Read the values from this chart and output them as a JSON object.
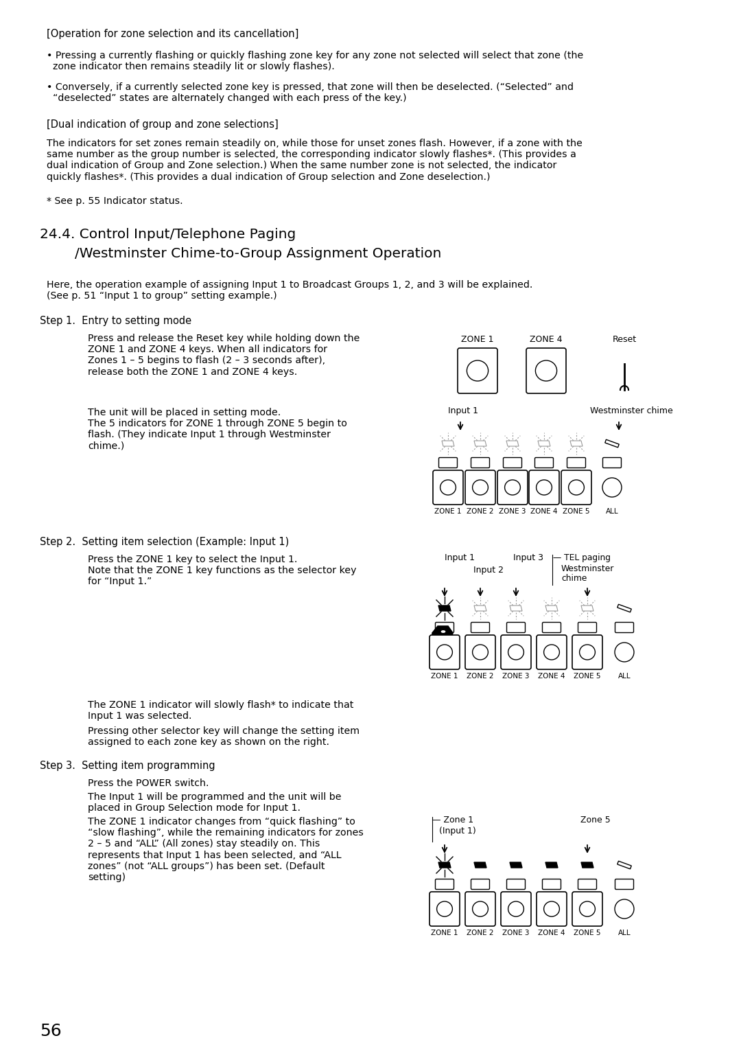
{
  "bg_color": "#ffffff",
  "text_color": "#000000",
  "page_number": "56",
  "content": {
    "section_header1": "[Operation for zone selection and its cancellation]",
    "bullet1": "• Pressing a currently flashing or quickly flashing zone key for any zone not selected will select that zone (the\n  zone indicator then remains steadily lit or slowly flashes).",
    "bullet2": "• Conversely, if a currently selected zone key is pressed, that zone will then be deselected. (“Selected” and\n  “deselected” states are alternately changed with each press of the key.)",
    "section_header2": "[Dual indication of group and zone selections]",
    "para1": "The indicators for set zones remain steadily on, while those for unset zones flash. However, if a zone with the\nsame number as the group number is selected, the corresponding indicator slowly flashes*. (This provides a\ndual indication of Group and Zone selection.) When the same number zone is not selected, the indicator\nquickly flashes*. (This provides a dual indication of Group selection and Zone deselection.)",
    "footnote": "* See p. 55 Indicator status.",
    "section_title_line1": "24.4. Control Input/Telephone Paging",
    "section_title_line2": "        /Westminster Chime-to-Group Assignment Operation",
    "intro_para": "Here, the operation example of assigning Input 1 to Broadcast Groups 1, 2, and 3 will be explained.\n(See p. 51 “Input 1 to group” setting example.)",
    "step1_label": "Step 1.  Entry to setting mode",
    "step1_text": "Press and release the Reset key while holding down the\nZONE 1 and ZONE 4 keys. When all indicators for\nZones 1 – 5 begins to flash (2 – 3 seconds after),\nrelease both the ZONE 1 and ZONE 4 keys.",
    "step1b_text": "The unit will be placed in setting mode.\nThe 5 indicators for ZONE 1 through ZONE 5 begin to\nflash. (They indicate Input 1 through Westminster\nchime.)",
    "zone_labels": [
      "ZONE 1",
      "ZONE 2",
      "ZONE 3",
      "ZONE 4",
      "ZONE 5",
      "ALL"
    ],
    "step2_label": "Step 2.  Setting item selection (Example: Input 1)",
    "step2_text1": "Press the ZONE 1 key to select the Input 1.\nNote that the ZONE 1 key functions as the selector key\nfor “Input 1.”",
    "step2_text2": "The ZONE 1 indicator will slowly flash* to indicate that\nInput 1 was selected.",
    "step2_text3": "Pressing other selector key will change the setting item\nassigned to each zone key as shown on the right.",
    "step3_label": "Step 3.  Setting item programming",
    "step3_text1": "Press the POWER switch.",
    "step3_text2": "The Input 1 will be programmed and the unit will be\nplaced in Group Selection mode for Input 1.",
    "step3_text3": "The ZONE 1 indicator changes from “quick flashing” to\n“slow flashing”, while the remaining indicators for zones\n2 – 5 and “ALL” (All zones) stay steadily on. This\nrepresents that Input 1 has been selected, and “ALL\nzones” (not “ALL groups”) has been set. (Default\nsetting)"
  }
}
